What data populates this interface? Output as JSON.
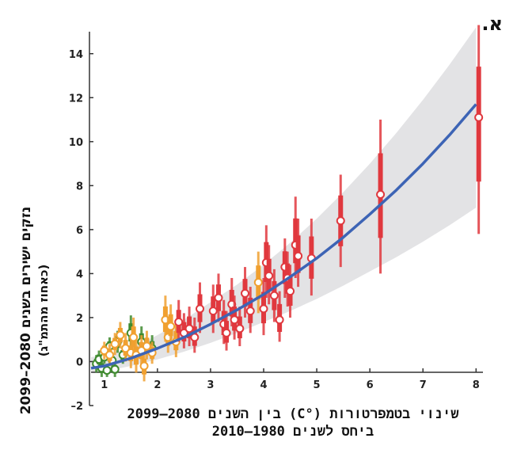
{
  "panel_letter": "א.",
  "chart_data": {
    "type": "scatter",
    "xlabel_line1": "שינוי בטמפרטורות (°C) בין השנים 2080–2099",
    "xlabel_line2": "ביחס לשנים 1980–2010",
    "ylabel_line1": "נזקים ישירים בשנים 2080–2099",
    "ylabel_line2": "(כאחוז מהתמ\"ג)",
    "xlim": [
      0.75,
      8.1
    ],
    "ylim": [
      -2,
      15
    ],
    "x_ticks": [
      1,
      2,
      3,
      4,
      5,
      6,
      7,
      8
    ],
    "y_ticks": [
      -2,
      0,
      2,
      4,
      6,
      8,
      10,
      12,
      14
    ],
    "grid": false,
    "colors": {
      "fit_line": "#3d64b5",
      "band": "#e3e3e5",
      "green": "#3e8a2e",
      "orange": "#f0a030",
      "red": "#e0383e"
    },
    "fit_curve": {
      "x": [
        0.75,
        1,
        1.5,
        2,
        2.5,
        3,
        3.5,
        4,
        4.5,
        5,
        5.5,
        6,
        6.5,
        7,
        7.5,
        8
      ],
      "y": [
        -0.3,
        -0.2,
        0.15,
        0.6,
        1.1,
        1.7,
        2.35,
        3.05,
        3.85,
        4.7,
        5.65,
        6.7,
        7.8,
        9.0,
        10.3,
        11.7
      ],
      "band_low": [
        -0.5,
        -0.45,
        -0.2,
        0.1,
        0.45,
        0.85,
        1.3,
        1.8,
        2.3,
        2.85,
        3.45,
        4.1,
        4.75,
        5.45,
        6.2,
        7.0
      ],
      "band_high": [
        0.2,
        0.3,
        0.6,
        1.2,
        1.9,
        2.7,
        3.5,
        4.4,
        5.4,
        6.5,
        7.7,
        9.0,
        10.4,
        11.9,
        13.5,
        15.2
      ]
    },
    "points": [
      {
        "group": "green",
        "x": 0.85,
        "y": -0.1,
        "lo": -0.5,
        "hi": 0.3
      },
      {
        "group": "green",
        "x": 0.9,
        "y": 0.1,
        "lo": -0.3,
        "hi": 0.5
      },
      {
        "group": "green",
        "x": 0.95,
        "y": -0.3,
        "lo": -0.7,
        "hi": 0.1
      },
      {
        "group": "green",
        "x": 1.0,
        "y": 0.2,
        "lo": -0.1,
        "hi": 0.5
      },
      {
        "group": "green",
        "x": 1.05,
        "y": -0.4,
        "lo": -0.7,
        "hi": -0.1
      },
      {
        "group": "green",
        "x": 1.1,
        "y": 0.7,
        "lo": 0.3,
        "hi": 1.1
      },
      {
        "group": "green",
        "x": 1.15,
        "y": 0.05,
        "lo": -0.3,
        "hi": 0.4
      },
      {
        "group": "green",
        "x": 1.2,
        "y": -0.35,
        "lo": -0.7,
        "hi": 0.0
      },
      {
        "group": "green",
        "x": 1.25,
        "y": 0.9,
        "lo": 0.4,
        "hi": 1.4
      },
      {
        "group": "green",
        "x": 1.35,
        "y": 0.3,
        "lo": -0.1,
        "hi": 0.7
      },
      {
        "group": "green",
        "x": 1.5,
        "y": 1.3,
        "lo": 0.6,
        "hi": 2.1
      },
      {
        "group": "green",
        "x": 1.7,
        "y": 0.9,
        "lo": 0.2,
        "hi": 1.6
      },
      {
        "group": "green",
        "x": 1.9,
        "y": 0.6,
        "lo": 0.1,
        "hi": 1.2
      },
      {
        "group": "orange",
        "x": 1.0,
        "y": 0.5,
        "lo": 0.1,
        "hi": 0.9
      },
      {
        "group": "orange",
        "x": 1.1,
        "y": 0.3,
        "lo": -0.2,
        "hi": 0.8
      },
      {
        "group": "orange",
        "x": 1.2,
        "y": 0.8,
        "lo": 0.3,
        "hi": 1.3
      },
      {
        "group": "orange",
        "x": 1.3,
        "y": 1.2,
        "lo": 0.6,
        "hi": 1.8
      },
      {
        "group": "orange",
        "x": 1.4,
        "y": 0.6,
        "lo": 0.0,
        "hi": 1.3
      },
      {
        "group": "orange",
        "x": 1.5,
        "y": 0.4,
        "lo": -0.3,
        "hi": 1.0
      },
      {
        "group": "orange",
        "x": 1.55,
        "y": 1.1,
        "lo": 0.3,
        "hi": 2.0
      },
      {
        "group": "orange",
        "x": 1.6,
        "y": 0.3,
        "lo": -0.5,
        "hi": 1.0
      },
      {
        "group": "orange",
        "x": 1.7,
        "y": 0.5,
        "lo": -0.2,
        "hi": 1.2
      },
      {
        "group": "orange",
        "x": 1.75,
        "y": -0.2,
        "lo": -0.9,
        "hi": 0.4
      },
      {
        "group": "orange",
        "x": 1.8,
        "y": 0.7,
        "lo": 0.1,
        "hi": 1.4
      },
      {
        "group": "orange",
        "x": 1.9,
        "y": 0.4,
        "lo": -0.1,
        "hi": 0.9
      },
      {
        "group": "orange",
        "x": 2.15,
        "y": 1.9,
        "lo": 0.9,
        "hi": 3.0
      },
      {
        "group": "orange",
        "x": 2.2,
        "y": 1.1,
        "lo": 0.4,
        "hi": 2.0
      },
      {
        "group": "orange",
        "x": 2.25,
        "y": 1.6,
        "lo": 0.8,
        "hi": 2.6
      },
      {
        "group": "orange",
        "x": 2.35,
        "y": 0.9,
        "lo": 0.2,
        "hi": 1.8
      },
      {
        "group": "orange",
        "x": 3.9,
        "y": 3.6,
        "lo": 2.2,
        "hi": 5.0
      },
      {
        "group": "red",
        "x": 2.4,
        "y": 1.8,
        "lo": 0.9,
        "hi": 2.8
      },
      {
        "group": "red",
        "x": 2.5,
        "y": 1.3,
        "lo": 0.6,
        "hi": 2.2
      },
      {
        "group": "red",
        "x": 2.6,
        "y": 1.5,
        "lo": 0.7,
        "hi": 2.5
      },
      {
        "group": "red",
        "x": 2.7,
        "y": 1.1,
        "lo": 0.4,
        "hi": 2.0
      },
      {
        "group": "red",
        "x": 2.8,
        "y": 2.4,
        "lo": 1.3,
        "hi": 3.6
      },
      {
        "group": "red",
        "x": 3.05,
        "y": 2.3,
        "lo": 1.3,
        "hi": 3.5
      },
      {
        "group": "red",
        "x": 3.15,
        "y": 2.9,
        "lo": 1.8,
        "hi": 4.0
      },
      {
        "group": "red",
        "x": 3.25,
        "y": 1.7,
        "lo": 0.8,
        "hi": 2.8
      },
      {
        "group": "red",
        "x": 3.3,
        "y": 1.3,
        "lo": 0.5,
        "hi": 2.3
      },
      {
        "group": "red",
        "x": 3.4,
        "y": 2.6,
        "lo": 1.6,
        "hi": 3.8
      },
      {
        "group": "red",
        "x": 3.45,
        "y": 1.9,
        "lo": 1.0,
        "hi": 3.0
      },
      {
        "group": "red",
        "x": 3.55,
        "y": 1.5,
        "lo": 0.7,
        "hi": 2.5
      },
      {
        "group": "red",
        "x": 3.65,
        "y": 3.1,
        "lo": 2.0,
        "hi": 4.3
      },
      {
        "group": "red",
        "x": 3.75,
        "y": 2.3,
        "lo": 1.3,
        "hi": 3.4
      },
      {
        "group": "red",
        "x": 4.0,
        "y": 2.4,
        "lo": 1.2,
        "hi": 3.8
      },
      {
        "group": "red",
        "x": 4.05,
        "y": 4.5,
        "lo": 2.9,
        "hi": 6.2
      },
      {
        "group": "red",
        "x": 4.1,
        "y": 3.9,
        "lo": 2.6,
        "hi": 5.3
      },
      {
        "group": "red",
        "x": 4.2,
        "y": 3.0,
        "lo": 1.8,
        "hi": 4.2
      },
      {
        "group": "red",
        "x": 4.3,
        "y": 1.9,
        "lo": 0.9,
        "hi": 3.2
      },
      {
        "group": "red",
        "x": 4.4,
        "y": 4.3,
        "lo": 2.9,
        "hi": 5.6
      },
      {
        "group": "red",
        "x": 4.45,
        "y": 3.8,
        "lo": 2.5,
        "hi": 5.0
      },
      {
        "group": "red",
        "x": 4.5,
        "y": 3.2,
        "lo": 2.0,
        "hi": 4.4
      },
      {
        "group": "red",
        "x": 4.6,
        "y": 5.3,
        "lo": 3.8,
        "hi": 7.5
      },
      {
        "group": "red",
        "x": 4.65,
        "y": 4.8,
        "lo": 3.4,
        "hi": 6.5
      },
      {
        "group": "red",
        "x": 4.9,
        "y": 4.7,
        "lo": 3.0,
        "hi": 6.5
      },
      {
        "group": "red",
        "x": 5.45,
        "y": 6.4,
        "lo": 4.3,
        "hi": 8.5
      },
      {
        "group": "red",
        "x": 6.2,
        "y": 7.6,
        "lo": 4.0,
        "hi": 11.0
      },
      {
        "group": "red",
        "x": 8.05,
        "y": 11.1,
        "lo": 5.8,
        "hi": 15.3
      }
    ]
  }
}
